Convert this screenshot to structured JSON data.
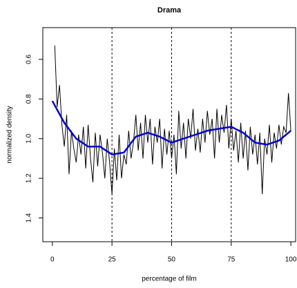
{
  "chart_data": {
    "type": "line",
    "title": "Drama",
    "xlabel": "percentage of film",
    "ylabel": "normalized density",
    "xlim": [
      -4,
      102
    ],
    "ylim": [
      1.52,
      0.44
    ],
    "xticks": [
      0,
      25,
      50,
      75,
      100
    ],
    "yticks": [
      0.6,
      0.8,
      {
        "value": 1,
        "label": "1.0"
      },
      1.2,
      1.4
    ],
    "vlines": [
      25,
      50,
      75
    ],
    "series": [
      {
        "color": "#000000",
        "x": [
          1,
          2,
          3,
          4,
          5,
          6,
          7,
          8,
          9,
          10,
          11,
          12,
          13,
          14,
          15,
          16,
          17,
          18,
          19,
          20,
          21,
          22,
          23,
          24,
          25,
          26,
          27,
          28,
          29,
          30,
          31,
          32,
          33,
          34,
          35,
          36,
          37,
          38,
          39,
          40,
          41,
          42,
          43,
          44,
          45,
          46,
          47,
          48,
          49,
          50,
          51,
          52,
          53,
          54,
          55,
          56,
          57,
          58,
          59,
          60,
          61,
          62,
          63,
          64,
          65,
          66,
          67,
          68,
          69,
          70,
          71,
          72,
          73,
          74,
          75,
          76,
          77,
          78,
          79,
          80,
          81,
          82,
          83,
          84,
          85,
          86,
          87,
          88,
          89,
          90,
          91,
          92,
          93,
          94,
          95,
          96,
          97,
          98,
          99,
          100
        ],
        "values": [
          0.53,
          0.84,
          0.73,
          0.93,
          1.04,
          0.88,
          1.18,
          0.96,
          1.05,
          1.12,
          0.98,
          1.08,
          0.94,
          1.15,
          0.93,
          1.1,
          1.22,
          0.97,
          1.14,
          0.98,
          1.07,
          1.2,
          1.0,
          1.12,
          1.28,
          1.05,
          1.21,
          0.98,
          1.2,
          1.08,
          1.13,
          0.96,
          1.1,
          1.02,
          0.88,
          1.06,
          0.92,
          1.1,
          0.88,
          1.02,
          0.9,
          1.13,
          0.94,
          1.02,
          0.9,
          1.15,
          0.95,
          1.08,
          0.96,
          1.1,
          0.98,
          1.18,
          0.86,
          1.05,
          0.92,
          1.1,
          0.9,
          1.0,
          0.85,
          1.06,
          0.95,
          1.07,
          0.9,
          1.02,
          0.86,
          0.98,
          0.9,
          1.1,
          0.85,
          1.02,
          0.88,
          0.97,
          0.83,
          1.05,
          0.9,
          1.06,
          0.96,
          1.12,
          0.92,
          1.1,
          0.96,
          1.16,
          0.94,
          1.08,
          0.98,
          1.13,
          0.97,
          1.28,
          1.0,
          1.08,
          0.93,
          1.12,
          0.97,
          1.05,
          0.93,
          1.03,
          0.94,
          0.97,
          0.77,
          0.96
        ]
      },
      {
        "color": "#0000cc",
        "x": [
          0,
          5,
          10,
          15,
          20,
          25,
          30,
          35,
          40,
          45,
          50,
          55,
          60,
          65,
          70,
          75,
          80,
          85,
          90,
          95,
          100
        ],
        "values": [
          0.81,
          0.92,
          1.0,
          1.04,
          1.04,
          1.08,
          1.07,
          0.99,
          0.97,
          0.99,
          1.02,
          1.0,
          0.98,
          0.96,
          0.95,
          0.94,
          0.97,
          1.02,
          1.03,
          1.01,
          0.96
        ]
      }
    ]
  }
}
